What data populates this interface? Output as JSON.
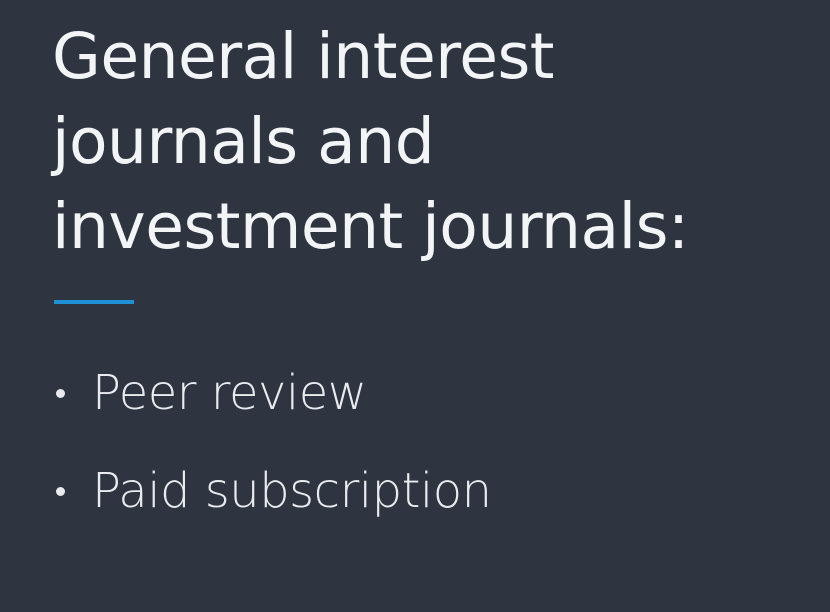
{
  "title": {
    "lines": [
      "General interest",
      "journals and",
      "investment journals:"
    ]
  },
  "bullets": [
    {
      "text": "Peer review"
    },
    {
      "text": "Paid subscription"
    }
  ],
  "colors": {
    "background": "#2e3540",
    "text": "#f3f4f5",
    "accent": "#1f8fd6"
  }
}
